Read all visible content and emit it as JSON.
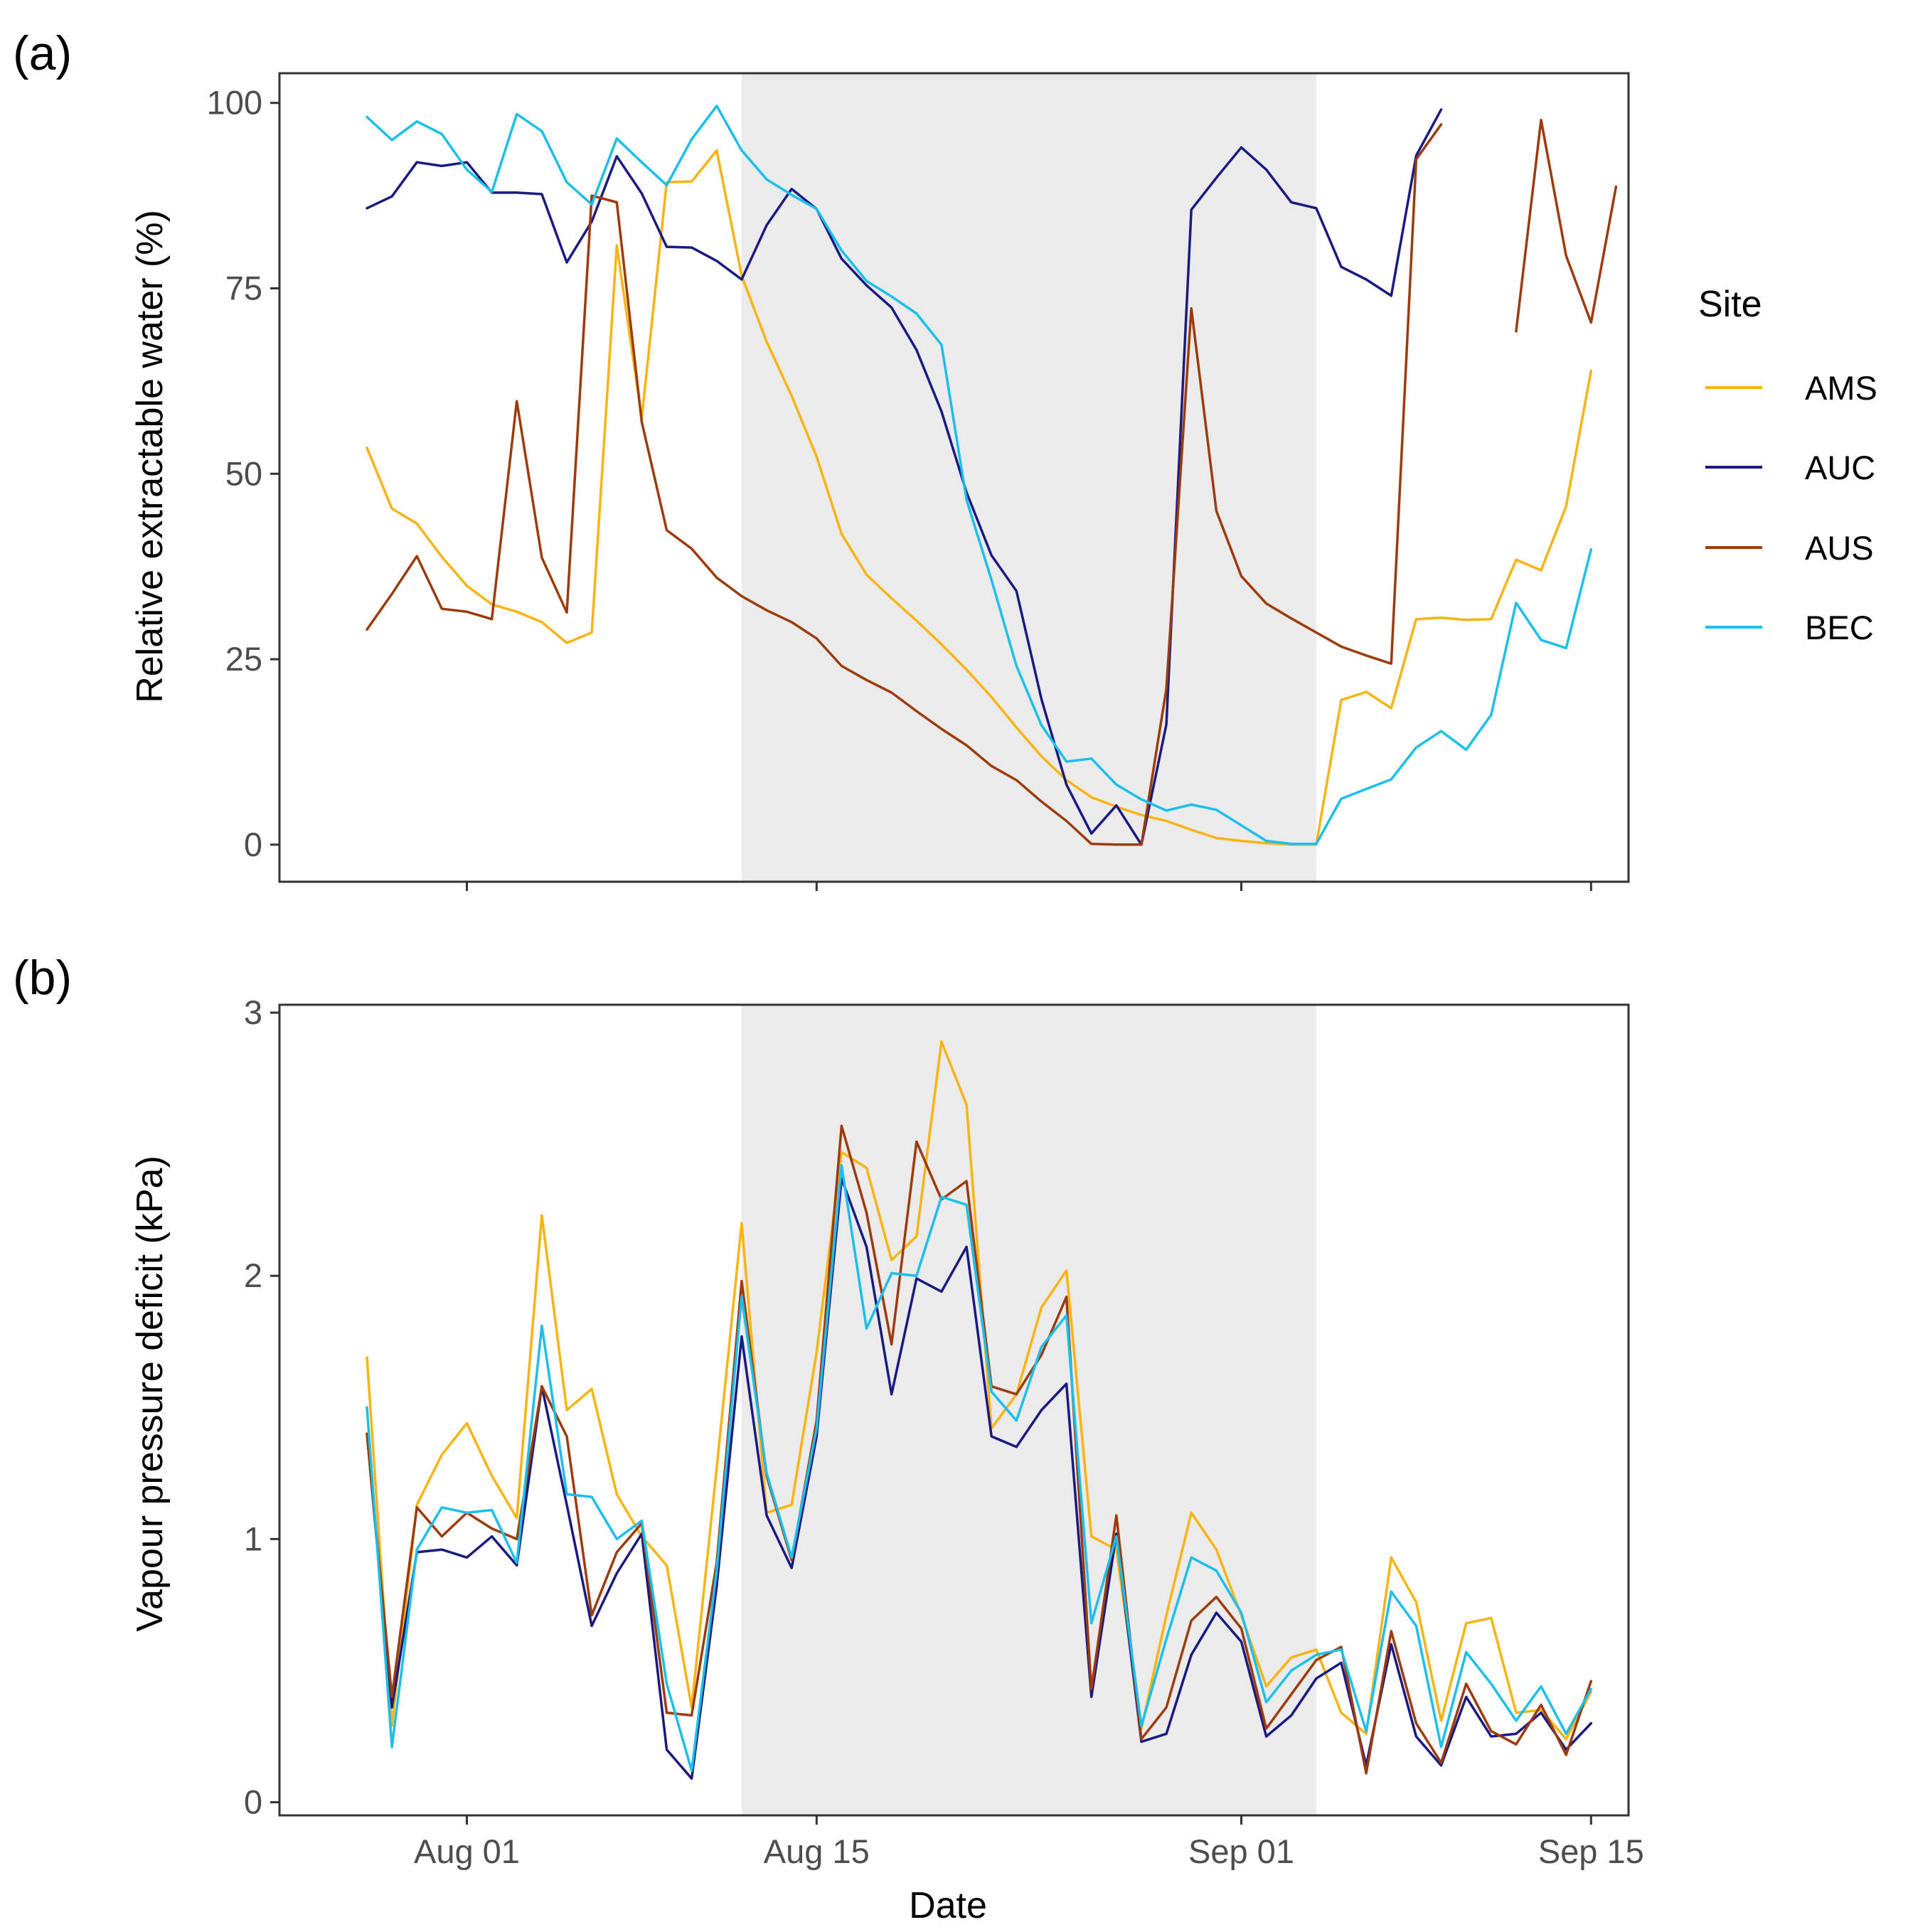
{
  "xlabel": "Date",
  "date_ticks": [
    {
      "day": 1,
      "label": "Aug 01"
    },
    {
      "day": 15,
      "label": "Aug 15"
    },
    {
      "day": 32,
      "label": "Sep 01"
    },
    {
      "day": 46,
      "label": "Sep 15"
    }
  ],
  "legend": {
    "title": "Site",
    "items": [
      {
        "name": "AMS",
        "color": "#f9b413"
      },
      {
        "name": "AUC",
        "color": "#1a1a80"
      },
      {
        "name": "AUS",
        "color": "#9c3c0c"
      },
      {
        "name": "BEC",
        "color": "#1bbfea"
      }
    ]
  },
  "chart_data": [
    {
      "tag": "(a)",
      "type": "line",
      "ylabel": "Relative extractable water (%)",
      "xlim": [
        -6.5,
        47.5
      ],
      "ylim": [
        -5,
        104
      ],
      "yticks": [
        0,
        25,
        50,
        75,
        100
      ],
      "shaded_range": [
        12,
        35
      ],
      "x_start_day": -3,
      "series": [
        {
          "name": "AMS",
          "color": "#f9b413",
          "values": [
            53.5,
            45.3,
            43.3,
            38.8,
            34.9,
            32.4,
            31.4,
            30,
            27.2,
            28.6,
            80.8,
            57.5,
            89.3,
            89.4,
            93.6,
            76.7,
            67.8,
            60.5,
            52.3,
            41.9,
            36.4,
            33.2,
            30.2,
            27.0,
            23.6,
            19.9,
            15.8,
            11.9,
            8.7,
            6.4,
            5.1,
            4.0,
            3.2,
            2.0,
            0.9,
            0.5,
            0.2,
            0.0,
            0.0,
            19.5,
            20.6,
            18.4,
            30.4,
            30.6,
            30.3,
            30.4,
            38.4,
            37.0,
            45.6,
            63.9
          ]
        },
        {
          "name": "AUC",
          "color": "#1a1a80",
          "values": [
            85.8,
            87.4,
            92.0,
            91.5,
            92.0,
            87.9,
            87.9,
            87.7,
            78.5,
            84.0,
            92.8,
            87.8,
            80.6,
            80.5,
            78.7,
            76.2,
            83.5,
            88.4,
            85.7,
            79.0,
            75.4,
            72.4,
            66.7,
            58.4,
            47.5,
            39.0,
            34.2,
            19.6,
            8.1,
            1.5,
            5.3,
            0.0,
            16.2,
            85.6,
            89.9,
            94.0,
            91.0,
            86.6,
            85.8,
            77.9,
            76.2,
            74.0,
            92.9,
            99.1
          ]
        },
        {
          "name": "AUS",
          "color": "#9c3c0c",
          "values": [
            29.0,
            33.8,
            38.9,
            31.8,
            31.4,
            30.4,
            59.8,
            38.7,
            31.3,
            87.5,
            86.6,
            57.0,
            42.4,
            39.9,
            36.0,
            33.5,
            31.6,
            30.0,
            27.8,
            24.1,
            22.2,
            20.5,
            18.0,
            15.6,
            13.4,
            10.6,
            8.7,
            5.8,
            3.2,
            0.1,
            0.0,
            0.0,
            21.0,
            72.3,
            45.0,
            36.2,
            32.5,
            30.5,
            28.6,
            26.7,
            25.5,
            24.4,
            92.4,
            97.1,
            null,
            null,
            69.2,
            97.7,
            79.4,
            70.4,
            88.7
          ]
        },
        {
          "name": "BEC",
          "color": "#1bbfea",
          "values": [
            98.1,
            95.0,
            97.5,
            95.8,
            91.0,
            88.0,
            98.5,
            96.2,
            89.3,
            86.3,
            95.2,
            92.0,
            88.9,
            95.1,
            99.6,
            93.6,
            89.7,
            87.6,
            85.7,
            80.1,
            76.0,
            73.9,
            71.6,
            67.4,
            46.5,
            35.7,
            24.1,
            16.1,
            11.2,
            11.6,
            8.1,
            6.1,
            4.6,
            5.4,
            4.7,
            2.6,
            0.5,
            0.1,
            0.1,
            6.2,
            7.5,
            8.8,
            13.1,
            15.3,
            12.8,
            17.5,
            32.6,
            27.6,
            26.5,
            39.8
          ]
        }
      ]
    },
    {
      "tag": "(b)",
      "type": "line",
      "ylabel": "Vapour pressure deficit (kPa)",
      "xlim": [
        -6.5,
        47.5
      ],
      "ylim": [
        -0.05,
        3.03
      ],
      "yticks": [
        0,
        1,
        2,
        3
      ],
      "shaded_range": [
        12,
        35
      ],
      "x_start_day": -3,
      "series": [
        {
          "name": "AMS",
          "color": "#f9b413",
          "values": [
            1.69,
            0.29,
            1.13,
            1.32,
            1.44,
            1.24,
            1.08,
            2.23,
            1.49,
            1.57,
            1.17,
            1.01,
            0.9,
            0.36,
            1.27,
            2.2,
            1.1,
            1.13,
            1.71,
            2.47,
            2.41,
            2.06,
            2.15,
            2.89,
            2.65,
            1.42,
            1.55,
            1.88,
            2.02,
            1.01,
            0.96,
            0.28,
            0.71,
            1.1,
            0.96,
            0.71,
            0.44,
            0.55,
            0.58,
            0.34,
            0.26,
            0.93,
            0.76,
            0.31,
            0.68,
            0.7,
            0.34,
            0.35,
            0.24,
            0.42
          ]
        },
        {
          "name": "AUC",
          "color": "#1a1a80",
          "values": [
            1.4,
            0.36,
            0.95,
            0.96,
            0.93,
            1.01,
            0.9,
            1.58,
            1.13,
            0.67,
            0.87,
            1.02,
            0.2,
            0.09,
            0.82,
            1.77,
            1.09,
            0.89,
            1.39,
            2.37,
            2.11,
            1.55,
            1.99,
            1.94,
            2.11,
            1.39,
            1.35,
            1.49,
            1.59,
            0.4,
            1.02,
            0.23,
            0.26,
            0.56,
            0.72,
            0.61,
            0.25,
            0.33,
            0.47,
            0.53,
            0.14,
            0.6,
            0.25,
            0.14,
            0.4,
            0.25,
            0.26,
            0.34,
            0.2,
            0.3
          ]
        },
        {
          "name": "AUS",
          "color": "#9c3c0c",
          "values": [
            1.4,
            0.4,
            1.12,
            1.01,
            1.1,
            1.04,
            1.0,
            1.58,
            1.39,
            0.71,
            0.95,
            1.06,
            0.34,
            0.33,
            0.91,
            1.98,
            1.24,
            0.92,
            1.45,
            2.57,
            2.24,
            1.74,
            2.51,
            2.29,
            2.36,
            1.58,
            1.55,
            1.7,
            1.92,
            0.43,
            1.09,
            0.24,
            0.36,
            0.69,
            0.78,
            0.66,
            0.28,
            0.41,
            0.54,
            0.59,
            0.11,
            0.65,
            0.3,
            0.15,
            0.45,
            0.27,
            0.22,
            0.37,
            0.18,
            0.46
          ]
        },
        {
          "name": "BEC",
          "color": "#1bbfea",
          "values": [
            1.5,
            0.21,
            0.96,
            1.12,
            1.1,
            1.11,
            0.91,
            1.81,
            1.17,
            1.16,
            1.0,
            1.07,
            0.45,
            0.12,
            0.88,
            1.92,
            1.25,
            0.93,
            1.42,
            2.42,
            1.8,
            2.01,
            2.0,
            2.3,
            2.27,
            1.56,
            1.45,
            1.73,
            1.85,
            0.68,
            1.01,
            0.29,
            0.62,
            0.93,
            0.88,
            0.72,
            0.38,
            0.5,
            0.56,
            0.58,
            0.27,
            0.8,
            0.67,
            0.21,
            0.57,
            0.45,
            0.31,
            0.44,
            0.26,
            0.43
          ]
        }
      ]
    }
  ]
}
